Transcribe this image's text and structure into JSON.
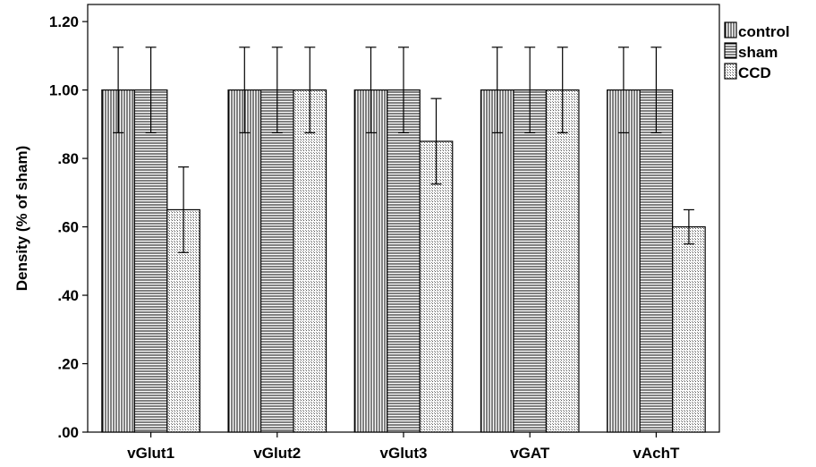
{
  "chart_data": {
    "type": "bar",
    "title": "",
    "xlabel": "",
    "ylabel": "Density (% of sham)",
    "ylim": [
      0,
      1.25
    ],
    "yticks": [
      ".00",
      ".20",
      ".40",
      ".60",
      ".80",
      "1.00",
      "1.20"
    ],
    "categories": [
      "vGlut1",
      "vGlut2",
      "vGlut3",
      "vGAT",
      "vAchT"
    ],
    "series": [
      {
        "name": "control",
        "values": [
          1.0,
          1.0,
          1.0,
          1.0,
          1.0
        ],
        "error": [
          0.125,
          0.125,
          0.125,
          0.125,
          0.125
        ],
        "pattern": "vertical-lines"
      },
      {
        "name": "sham",
        "values": [
          1.0,
          1.0,
          1.0,
          1.0,
          1.0
        ],
        "error": [
          0.125,
          0.125,
          0.125,
          0.125,
          0.125
        ],
        "pattern": "horizontal-lines"
      },
      {
        "name": "CCD",
        "values": [
          0.65,
          1.0,
          0.85,
          1.0,
          0.6
        ],
        "error": [
          0.125,
          0.125,
          0.125,
          0.125,
          0.05
        ],
        "pattern": "dots"
      }
    ],
    "grid": false,
    "legend_position": "top-right"
  }
}
